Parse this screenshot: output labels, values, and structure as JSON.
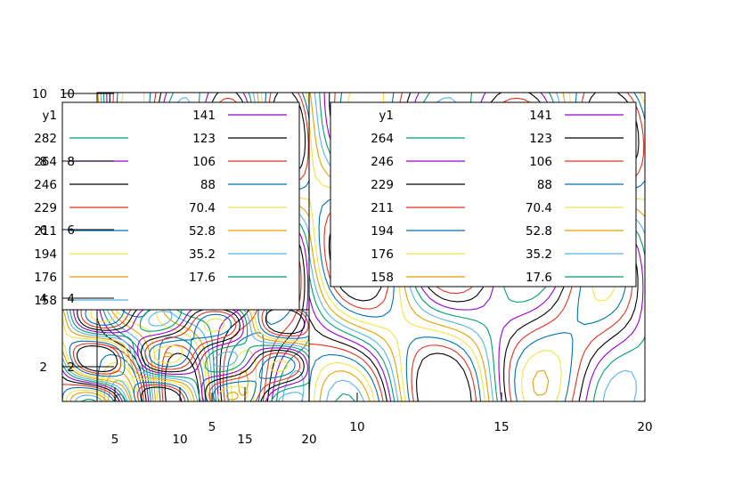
{
  "chart_data": [
    {
      "type": "contour",
      "panel": "right-large",
      "xlim": [
        0,
        20
      ],
      "ylim": [
        0,
        10
      ],
      "x_ticks": [
        "10",
        "15",
        "20"
      ],
      "y_ticks": [
        "10"
      ],
      "legend": {
        "placement": "top",
        "title": "y1",
        "columns": [
          [
            "264",
            "246",
            "229",
            "211",
            "194",
            "176",
            "158"
          ],
          [
            "141",
            "123",
            "106",
            "88",
            "70.4",
            "52.8",
            "35.2",
            "17.6"
          ]
        ]
      },
      "levels": [
        "264",
        "246",
        "229",
        "211",
        "194",
        "176",
        "158",
        "141",
        "123",
        "106",
        "88",
        "70.4",
        "52.8",
        "35.2",
        "17.6"
      ]
    },
    {
      "type": "contour",
      "panel": "left-tall",
      "xlim": [
        0,
        20
      ],
      "ylim": [
        0,
        10
      ],
      "x_ticks": [
        "5",
        "10",
        "15",
        "20"
      ],
      "y_ticks": [
        "2",
        "4",
        "6",
        "8",
        "10"
      ],
      "legend": {
        "placement": "top",
        "title": "y1",
        "columns": [
          [
            "282",
            "264",
            "246",
            "229",
            "211",
            "194",
            "176",
            "158"
          ],
          [
            "141",
            "123",
            "106",
            "88",
            "70.4",
            "52.8",
            "35.2",
            "17.6"
          ]
        ]
      },
      "levels": [
        "282",
        "264",
        "246",
        "229",
        "211",
        "194",
        "176",
        "158",
        "141",
        "123",
        "106",
        "88",
        "70.4",
        "52.8",
        "35.2",
        "17.6"
      ]
    },
    {
      "type": "contour",
      "panel": "bottom-small",
      "xlim": [
        0,
        20
      ],
      "ylim": [
        0,
        10
      ],
      "x_ticks": [
        "5"
      ],
      "y_ticks": [
        "2",
        "4",
        "6",
        "8",
        "10"
      ]
    }
  ],
  "colors": {
    "black": "#000000",
    "red": "#e6301e",
    "blue": "#0072b2",
    "yellow": "#f0e442",
    "orange": "#e69f00",
    "skyblue": "#56b4e9",
    "green": "#009e73",
    "purple": "#9400d3"
  }
}
